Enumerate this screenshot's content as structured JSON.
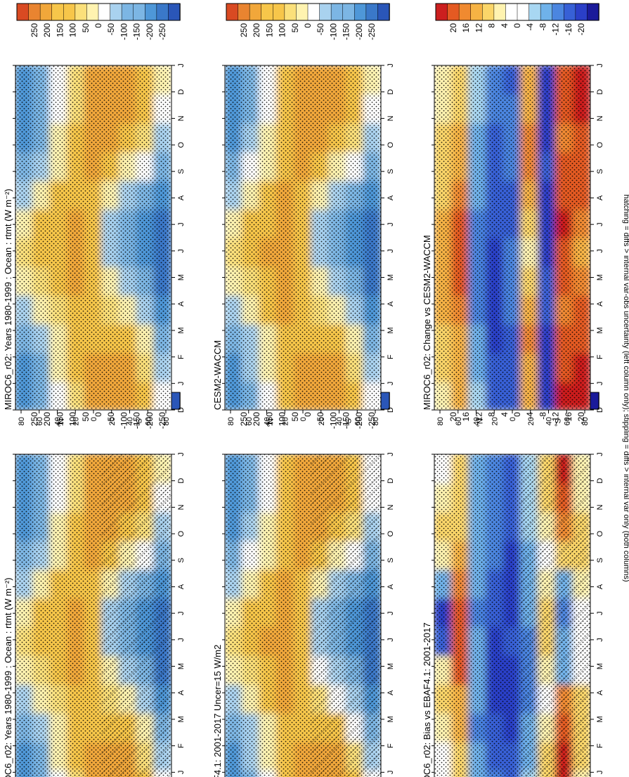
{
  "figure": {
    "footnote": "hatching = diffs > internal var-obs uncertainty (left column only); stippling = diffs > internal var only (both columns)"
  },
  "colors": {
    "field": [
      "#2a56b8",
      "#3a78c9",
      "#4e97d8",
      "#7cb6e4",
      "#a9d2ef",
      "#ffffff",
      "#fff3b0",
      "#fbe07a",
      "#f7c64a",
      "#f1a73a",
      "#e98430",
      "#d94a22"
    ],
    "diff": [
      "#1a1a9a",
      "#2a3fc8",
      "#3760d6",
      "#4b86e0",
      "#6fb2ea",
      "#a8d7f2",
      "#ffffff",
      "#fff3b0",
      "#fbd669",
      "#f6b344",
      "#f08a30",
      "#e45a22",
      "#cc1f1f"
    ]
  },
  "chart_data": [
    {
      "type": "heatmap",
      "id": "a",
      "title": "MIROC6_r02: Years 1980-1999 : Ocean : rtmt (W m⁻²)",
      "xlabel": "month",
      "ylabel": "latitude",
      "x_ticks": [
        "D",
        "J",
        "F",
        "M",
        "A",
        "M",
        "J",
        "J",
        "A",
        "S",
        "O",
        "N",
        "D",
        "J"
      ],
      "y_ticks": [
        "80",
        "60",
        "40",
        "20",
        "0",
        "20",
        "40",
        "60",
        "80"
      ],
      "y_hemi_labels": [
        "°N",
        "°S"
      ],
      "colorbar_labels": [
        "250",
        "200",
        "150",
        "100",
        "50",
        "0",
        "-50",
        "-100",
        "-150",
        "-200",
        "-250"
      ],
      "scale": "field",
      "hatching": true,
      "stippling": true,
      "values_lat_80N_to_80S_by_month_J_to_D": [
        [
          -170,
          -165,
          -130,
          -80,
          -20,
          30,
          10,
          -60,
          -120,
          -160,
          -170,
          -175
        ],
        [
          -110,
          -100,
          -60,
          -10,
          40,
          80,
          60,
          10,
          -50,
          -100,
          -120,
          -120
        ],
        [
          -30,
          -20,
          10,
          50,
          80,
          100,
          90,
          60,
          20,
          -20,
          -40,
          -40
        ],
        [
          50,
          60,
          80,
          100,
          110,
          110,
          110,
          100,
          80,
          60,
          50,
          50
        ],
        [
          110,
          110,
          100,
          90,
          70,
          60,
          70,
          90,
          110,
          120,
          120,
          120
        ],
        [
          140,
          130,
          100,
          50,
          -20,
          -70,
          -60,
          -10,
          60,
          120,
          140,
          150
        ],
        [
          140,
          120,
          60,
          -20,
          -90,
          -130,
          -120,
          -60,
          20,
          100,
          140,
          150
        ],
        [
          80,
          50,
          -20,
          -90,
          -140,
          -170,
          -160,
          -110,
          -40,
          40,
          80,
          90
        ],
        [
          -40,
          -80,
          -140,
          -180,
          -200,
          -210,
          -210,
          -190,
          -140,
          -80,
          -40,
          -20
        ]
      ]
    },
    {
      "type": "heatmap",
      "id": "b",
      "title": "MIROC6_r02: Years 1980-1999 : Ocean : rtmt (W m⁻²)",
      "xlabel": "month",
      "ylabel": "latitude",
      "x_ticks": [
        "D",
        "J",
        "F",
        "M",
        "A",
        "M",
        "J",
        "J",
        "A",
        "S",
        "O",
        "N",
        "D",
        "J"
      ],
      "y_ticks": [
        "80",
        "60",
        "40",
        "20",
        "0",
        "20",
        "40",
        "60",
        "80"
      ],
      "y_hemi_labels": [
        "°N",
        "°S"
      ],
      "colorbar_labels": [
        "250",
        "200",
        "150",
        "100",
        "50",
        "0",
        "-50",
        "-100",
        "-150",
        "-200",
        "-250"
      ],
      "scale": "field",
      "hatching": false,
      "stippling": true,
      "values_lat_80N_to_80S_by_month_J_to_D": [
        [
          -170,
          -165,
          -130,
          -80,
          -20,
          30,
          10,
          -60,
          -120,
          -160,
          -170,
          -175
        ],
        [
          -110,
          -100,
          -60,
          -10,
          40,
          80,
          60,
          10,
          -50,
          -100,
          -120,
          -120
        ],
        [
          -30,
          -20,
          10,
          50,
          80,
          100,
          90,
          60,
          20,
          -20,
          -40,
          -40
        ],
        [
          50,
          60,
          80,
          100,
          110,
          110,
          110,
          100,
          80,
          60,
          50,
          50
        ],
        [
          110,
          110,
          100,
          90,
          70,
          60,
          70,
          90,
          110,
          120,
          120,
          120
        ],
        [
          140,
          130,
          100,
          50,
          -20,
          -70,
          -60,
          -10,
          60,
          120,
          140,
          150
        ],
        [
          140,
          120,
          60,
          -20,
          -90,
          -130,
          -120,
          -60,
          20,
          100,
          140,
          150
        ],
        [
          80,
          50,
          -20,
          -90,
          -140,
          -170,
          -160,
          -110,
          -40,
          40,
          80,
          90
        ],
        [
          -40,
          -80,
          -140,
          -180,
          -200,
          -210,
          -210,
          -190,
          -140,
          -80,
          -40,
          -20
        ]
      ]
    },
    {
      "type": "heatmap",
      "id": "c",
      "title": "EBAF4.1: 2001-2017 Uncer=15 W/m2",
      "xlabel": "month",
      "ylabel": "latitude",
      "x_ticks": [
        "D",
        "J",
        "F",
        "M",
        "A",
        "M",
        "J",
        "J",
        "A",
        "S",
        "O",
        "N",
        "D",
        "J"
      ],
      "y_ticks": [
        "80",
        "60",
        "40",
        "20",
        "0",
        "20",
        "40",
        "60",
        "80"
      ],
      "y_hemi_labels": [
        "°N",
        "°S"
      ],
      "colorbar_labels": [
        "250",
        "200",
        "150",
        "100",
        "50",
        "0",
        "-50",
        "-100",
        "-150",
        "-200",
        "-250"
      ],
      "scale": "field",
      "hatching": true,
      "stippling": true,
      "values_lat_80N_to_80S_by_month_J_to_D": [
        [
          -165,
          -160,
          -125,
          -75,
          -15,
          35,
          15,
          -55,
          -115,
          -155,
          -165,
          -170
        ],
        [
          -105,
          -95,
          -55,
          -5,
          45,
          85,
          65,
          15,
          -45,
          -95,
          -115,
          -115
        ],
        [
          -25,
          -15,
          15,
          55,
          85,
          105,
          95,
          65,
          25,
          -15,
          -35,
          -35
        ],
        [
          55,
          65,
          85,
          105,
          115,
          115,
          115,
          105,
          85,
          65,
          55,
          55
        ],
        [
          105,
          105,
          95,
          85,
          65,
          55,
          65,
          85,
          105,
          115,
          115,
          115
        ],
        [
          135,
          125,
          95,
          45,
          -25,
          -75,
          -65,
          -15,
          55,
          115,
          135,
          145
        ],
        [
          135,
          115,
          55,
          -25,
          -95,
          -135,
          -125,
          -65,
          15,
          95,
          135,
          145
        ],
        [
          75,
          45,
          -25,
          -95,
          -145,
          -175,
          -165,
          -115,
          -45,
          35,
          75,
          85
        ],
        [
          -45,
          -85,
          -145,
          -185,
          -205,
          -215,
          -215,
          -195,
          -145,
          -85,
          -45,
          -25
        ]
      ]
    },
    {
      "type": "heatmap",
      "id": "d",
      "title": "CESM2-WACCM",
      "xlabel": "month",
      "ylabel": "latitude",
      "x_ticks": [
        "D",
        "J",
        "F",
        "M",
        "A",
        "M",
        "J",
        "J",
        "A",
        "S",
        "O",
        "N",
        "D",
        "J"
      ],
      "y_ticks": [
        "80",
        "60",
        "40",
        "20",
        "0",
        "20",
        "40",
        "60",
        "80"
      ],
      "y_hemi_labels": [
        "°N",
        "°S"
      ],
      "colorbar_labels": [
        "250",
        "200",
        "150",
        "100",
        "50",
        "0",
        "-50",
        "-100",
        "-150",
        "-200",
        "-250"
      ],
      "scale": "field",
      "hatching": false,
      "stippling": true,
      "values_lat_80N_to_80S_by_month_J_to_D": [
        [
          -168,
          -162,
          -128,
          -78,
          -18,
          32,
          12,
          -58,
          -118,
          -158,
          -168,
          -172
        ],
        [
          -108,
          -98,
          -58,
          -8,
          42,
          82,
          62,
          12,
          -48,
          -98,
          -118,
          -118
        ],
        [
          -28,
          -18,
          12,
          52,
          82,
          102,
          92,
          62,
          22,
          -18,
          -38,
          -38
        ],
        [
          52,
          62,
          82,
          102,
          112,
          112,
          112,
          102,
          82,
          62,
          52,
          52
        ],
        [
          108,
          108,
          98,
          88,
          68,
          58,
          68,
          88,
          108,
          118,
          118,
          118
        ],
        [
          138,
          128,
          98,
          48,
          -22,
          -72,
          -62,
          -12,
          58,
          118,
          138,
          148
        ],
        [
          138,
          118,
          58,
          -22,
          -92,
          -132,
          -122,
          -62,
          18,
          98,
          138,
          148
        ],
        [
          78,
          48,
          -22,
          -92,
          -142,
          -172,
          -162,
          -112,
          -42,
          38,
          78,
          88
        ],
        [
          -42,
          -82,
          -142,
          -182,
          -202,
          -212,
          -212,
          -192,
          -142,
          -82,
          -42,
          -22
        ]
      ]
    },
    {
      "type": "heatmap",
      "id": "e",
      "title": "MIROC6_r02: Bias vs EBAF4.1: 2001-2017",
      "xlabel": "month",
      "ylabel": "latitude",
      "x_ticks": [
        "D",
        "J",
        "F",
        "M",
        "A",
        "M",
        "J",
        "J",
        "A",
        "S",
        "O",
        "N",
        "D",
        "J"
      ],
      "y_ticks": [
        "80",
        "60",
        "40",
        "20",
        "0",
        "20",
        "40",
        "60",
        "80"
      ],
      "y_hemi_labels": [
        "°N",
        "°S"
      ],
      "colorbar_labels": [
        "20",
        "16",
        "12",
        "8",
        "4",
        "0",
        "-4",
        "-8",
        "-12",
        "-16",
        "-20"
      ],
      "scale": "diff",
      "hatching": true,
      "stippling": true,
      "values_lat_80N_to_80S_by_month_J_to_D": [
        [
          2,
          2,
          4,
          6,
          4,
          -12,
          -16,
          -4,
          4,
          6,
          4,
          2
        ],
        [
          8,
          8,
          10,
          12,
          18,
          20,
          20,
          14,
          10,
          8,
          8,
          8
        ],
        [
          -6,
          -6,
          -8,
          -6,
          -4,
          -6,
          -8,
          -6,
          -4,
          -6,
          -6,
          -6
        ],
        [
          -10,
          -12,
          -14,
          -16,
          -18,
          -16,
          -14,
          -12,
          -10,
          -8,
          -8,
          -8
        ],
        [
          -12,
          -14,
          -16,
          -18,
          -16,
          -14,
          -16,
          -18,
          -16,
          -14,
          -12,
          -12
        ],
        [
          -2,
          -4,
          -6,
          -8,
          -10,
          -8,
          -6,
          -6,
          -4,
          -2,
          -2,
          -2
        ],
        [
          6,
          6,
          4,
          2,
          4,
          6,
          6,
          4,
          2,
          4,
          6,
          6
        ],
        [
          22,
          22,
          20,
          16,
          -4,
          -6,
          -8,
          -4,
          6,
          14,
          20,
          22
        ],
        [
          4,
          6,
          8,
          6,
          2,
          0,
          2,
          4,
          6,
          6,
          4,
          4
        ]
      ]
    },
    {
      "type": "heatmap",
      "id": "f",
      "title": "MIROC6_r02: Change vs CESM2-WACCM",
      "xlabel": "month",
      "ylabel": "latitude",
      "x_ticks": [
        "D",
        "J",
        "F",
        "M",
        "A",
        "M",
        "J",
        "J",
        "A",
        "S",
        "O",
        "N",
        "D",
        "J"
      ],
      "y_ticks": [
        "80",
        "60",
        "40",
        "20",
        "0",
        "20",
        "40",
        "60",
        "80"
      ],
      "y_hemi_labels": [
        "°N",
        "°S"
      ],
      "colorbar_labels": [
        "20",
        "16",
        "12",
        "8",
        "4",
        "0",
        "-4",
        "-8",
        "-12",
        "-16",
        "-20"
      ],
      "scale": "diff",
      "hatching": false,
      "stippling": true,
      "values_lat_80N_to_80S_by_month_J_to_D": [
        [
          4,
          6,
          8,
          10,
          12,
          12,
          10,
          8,
          6,
          6,
          4,
          4
        ],
        [
          10,
          10,
          12,
          14,
          18,
          20,
          20,
          16,
          12,
          10,
          8,
          8
        ],
        [
          -2,
          -4,
          -6,
          -8,
          -10,
          -10,
          -8,
          -6,
          -4,
          -4,
          -2,
          -2
        ],
        [
          -12,
          -14,
          -16,
          -18,
          -18,
          -16,
          -14,
          -14,
          -12,
          -12,
          -10,
          -10
        ],
        [
          -14,
          -14,
          -12,
          -10,
          -8,
          -10,
          -12,
          -12,
          -10,
          -8,
          -10,
          -12
        ],
        [
          10,
          12,
          14,
          10,
          6,
          4,
          6,
          12,
          16,
          14,
          12,
          10
        ],
        [
          -16,
          -18,
          -16,
          -12,
          -14,
          -16,
          -18,
          -16,
          -14,
          -16,
          -18,
          -16
        ],
        [
          22,
          20,
          18,
          16,
          18,
          20,
          22,
          20,
          18,
          16,
          18,
          20
        ],
        [
          22,
          22,
          20,
          18,
          14,
          10,
          14,
          18,
          20,
          20,
          22,
          22
        ]
      ]
    }
  ]
}
